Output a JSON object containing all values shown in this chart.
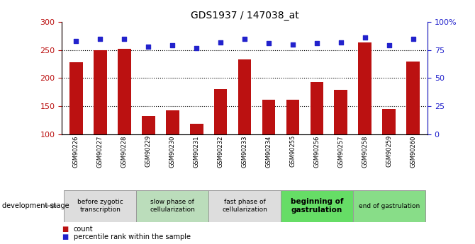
{
  "title": "GDS1937 / 147038_at",
  "samples": [
    "GSM90226",
    "GSM90227",
    "GSM90228",
    "GSM90229",
    "GSM90230",
    "GSM90231",
    "GSM90232",
    "GSM90233",
    "GSM90234",
    "GSM90255",
    "GSM90256",
    "GSM90257",
    "GSM90258",
    "GSM90259",
    "GSM90260"
  ],
  "counts": [
    228,
    250,
    252,
    133,
    143,
    119,
    180,
    233,
    162,
    161,
    193,
    179,
    263,
    145,
    229
  ],
  "percentile": [
    83,
    85,
    85,
    78,
    79,
    77,
    82,
    85,
    81,
    80,
    81,
    82,
    86,
    79,
    85
  ],
  "bar_color": "#bb1111",
  "dot_color": "#2222cc",
  "ylim_left": [
    100,
    300
  ],
  "ylim_right": [
    0,
    100
  ],
  "yticks_left": [
    100,
    150,
    200,
    250,
    300
  ],
  "yticks_right": [
    0,
    25,
    50,
    75,
    100
  ],
  "yticklabels_right": [
    "0",
    "25",
    "50",
    "75",
    "100%"
  ],
  "grid_lines": [
    150,
    200,
    250
  ],
  "stages": [
    {
      "label": "before zygotic\ntranscription",
      "start": 0,
      "end": 3,
      "color": "#dddddd",
      "bold": false
    },
    {
      "label": "slow phase of\ncellularization",
      "start": 3,
      "end": 6,
      "color": "#bbddbb",
      "bold": false
    },
    {
      "label": "fast phase of\ncellularization",
      "start": 6,
      "end": 9,
      "color": "#dddddd",
      "bold": false
    },
    {
      "label": "beginning of\ngastrulation",
      "start": 9,
      "end": 12,
      "color": "#66dd66",
      "bold": true
    },
    {
      "label": "end of gastrulation",
      "start": 12,
      "end": 15,
      "color": "#88dd88",
      "bold": false
    }
  ],
  "dev_stage_label": "development stage",
  "legend_count_label": "count",
  "legend_percentile_label": "percentile rank within the sample",
  "xlim": [
    -0.6,
    14.6
  ]
}
